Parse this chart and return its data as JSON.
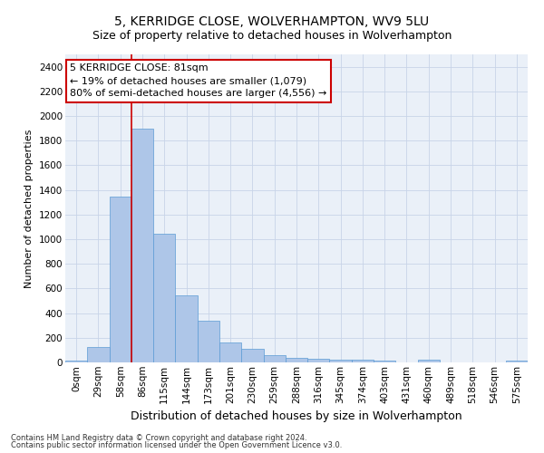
{
  "title": "5, KERRIDGE CLOSE, WOLVERHAMPTON, WV9 5LU",
  "subtitle": "Size of property relative to detached houses in Wolverhampton",
  "xlabel": "Distribution of detached houses by size in Wolverhampton",
  "ylabel": "Number of detached properties",
  "categories": [
    "0sqm",
    "29sqm",
    "58sqm",
    "86sqm",
    "115sqm",
    "144sqm",
    "173sqm",
    "201sqm",
    "230sqm",
    "259sqm",
    "288sqm",
    "316sqm",
    "345sqm",
    "374sqm",
    "403sqm",
    "431sqm",
    "460sqm",
    "489sqm",
    "518sqm",
    "546sqm",
    "575sqm"
  ],
  "values": [
    15,
    125,
    1345,
    1895,
    1045,
    545,
    340,
    165,
    110,
    60,
    38,
    28,
    25,
    20,
    15,
    0,
    22,
    0,
    0,
    0,
    15
  ],
  "bar_color": "#aec6e8",
  "bar_edgecolor": "#5b9bd5",
  "vline_x": 2.5,
  "vline_color": "#cc0000",
  "annotation_line1": "5 KERRIDGE CLOSE: 81sqm",
  "annotation_line2": "← 19% of detached houses are smaller (1,079)",
  "annotation_line3": "80% of semi-detached houses are larger (4,556) →",
  "annotation_box_color": "#ffffff",
  "annotation_box_edgecolor": "#cc0000",
  "ylim": [
    0,
    2500
  ],
  "yticks": [
    0,
    200,
    400,
    600,
    800,
    1000,
    1200,
    1400,
    1600,
    1800,
    2000,
    2200,
    2400
  ],
  "footer1": "Contains HM Land Registry data © Crown copyright and database right 2024.",
  "footer2": "Contains public sector information licensed under the Open Government Licence v3.0.",
  "bg_color": "#ffffff",
  "plot_bg_color": "#eaf0f8",
  "grid_color": "#c8d4e8",
  "title_fontsize": 10,
  "subtitle_fontsize": 9,
  "xlabel_fontsize": 9,
  "ylabel_fontsize": 8,
  "tick_fontsize": 7.5,
  "annotation_fontsize": 8,
  "footer_fontsize": 6
}
